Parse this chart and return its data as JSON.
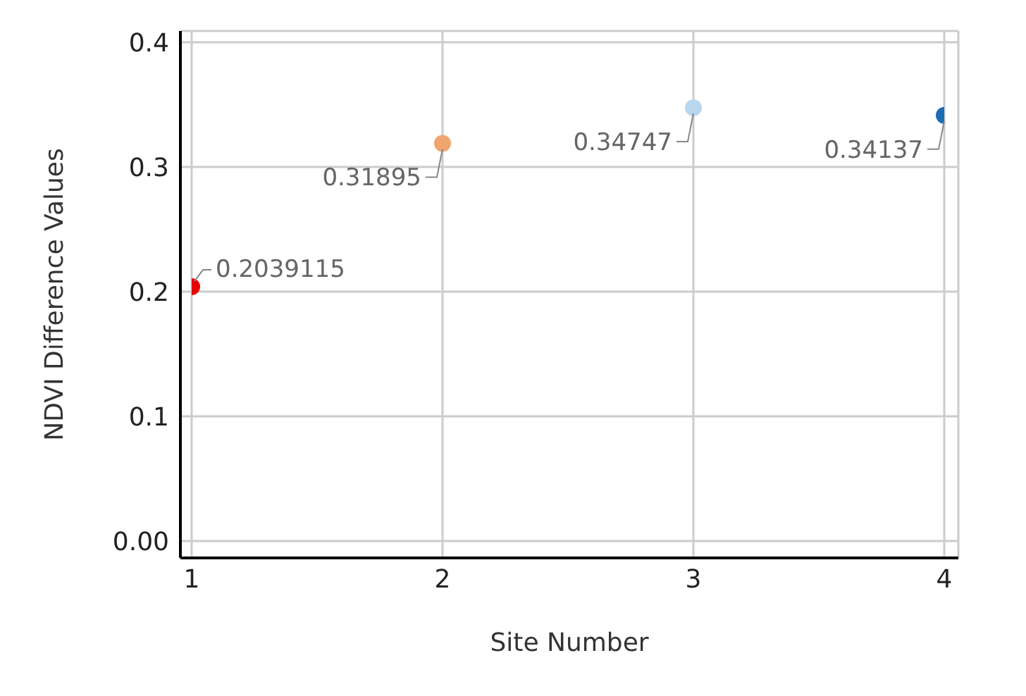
{
  "chart_data": {
    "type": "scatter",
    "xlabel": "Site Number",
    "ylabel": "NDVI Difference Values",
    "x": [
      1,
      2,
      3,
      4
    ],
    "values": [
      0.2039115,
      0.31895,
      0.34747,
      0.34137
    ],
    "colors": [
      "#e60000",
      "#f0a46e",
      "#b9d7ef",
      "#1c6cb4"
    ],
    "data_labels": true,
    "xlim": [
      1,
      4
    ],
    "xticks": [
      1,
      2,
      3,
      4
    ],
    "ylim": [
      0,
      0.4
    ],
    "yticks": [
      {
        "value": 0,
        "label": "0.00"
      },
      0.1,
      0.2,
      0.3,
      0.4
    ],
    "grid": true,
    "marker": "circle",
    "legend": false
  }
}
